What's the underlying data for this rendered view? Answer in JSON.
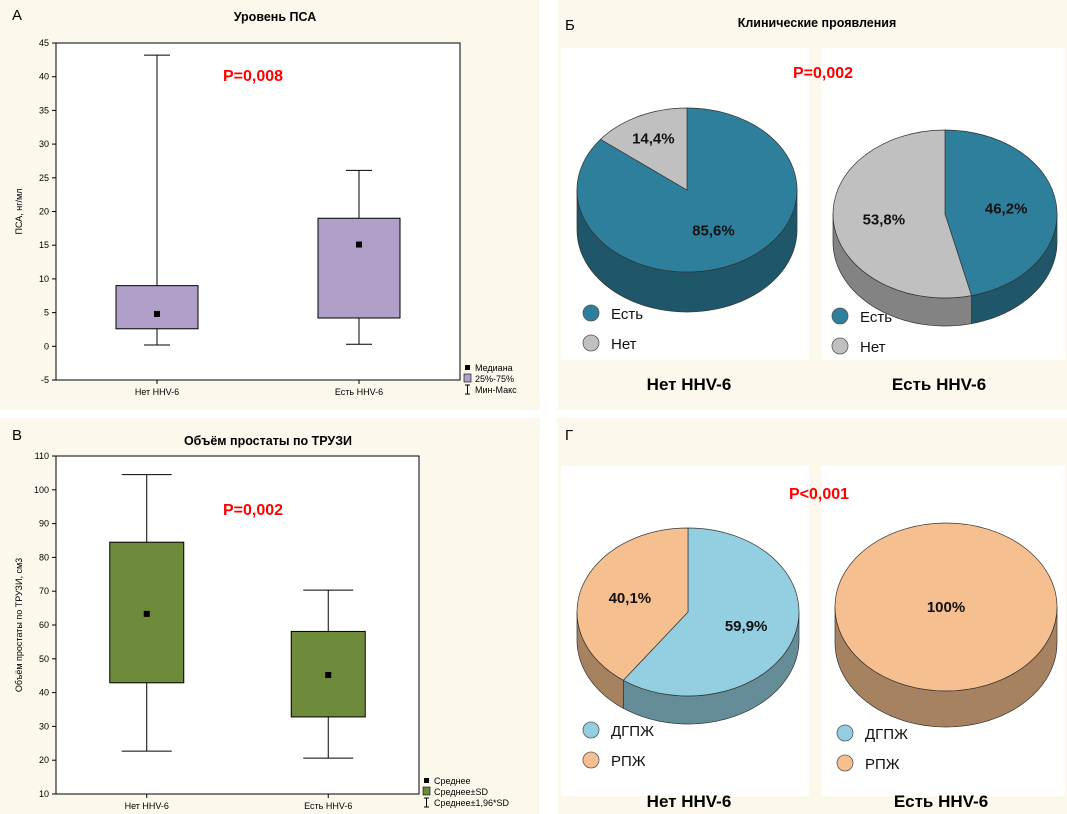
{
  "chart_data": [
    {
      "type": "box",
      "panel": "А",
      "title": "Уровень ПСА",
      "ylabel": "ПСА, нг/мл",
      "ylim": [
        -5,
        45
      ],
      "yticks": [
        -5,
        0,
        5,
        10,
        15,
        20,
        25,
        30,
        35,
        40,
        45
      ],
      "categories": [
        "Нет HHV-6",
        "Есть HHV-6"
      ],
      "annotation": "P=0,008",
      "legend": [
        "Медиана",
        "25%-75%",
        "Мин-Макс"
      ],
      "box_color": "#b09fc9",
      "boxes": [
        {
          "center": 4.8,
          "q1": 2.6,
          "q3": 9.0,
          "min": 0.2,
          "max": 43.2
        },
        {
          "center": 15.1,
          "q1": 4.2,
          "q3": 19.0,
          "min": 0.3,
          "max": 26.1
        }
      ]
    },
    {
      "type": "pie",
      "panel": "Б",
      "title": "Клинические проявления",
      "annotation": "P=0,002",
      "legend": [
        "Есть",
        "Нет"
      ],
      "colors": [
        "#2e7f9c",
        "#c0c0c0"
      ],
      "groups": [
        {
          "label": "Нет HHV-6",
          "slices": [
            {
              "name": "Есть",
              "value": 85.6,
              "label": "85,6%"
            },
            {
              "name": "Нет",
              "value": 14.4,
              "label": "14,4%"
            }
          ]
        },
        {
          "label": "Есть HHV-6",
          "slices": [
            {
              "name": "Есть",
              "value": 46.2,
              "label": "46,2%"
            },
            {
              "name": "Нет",
              "value": 53.8,
              "label": "53,8%"
            }
          ]
        }
      ]
    },
    {
      "type": "box",
      "panel": "В",
      "title": "Объём простаты по ТРУЗИ",
      "ylabel": "Объём простаты по ТРУЗИ, см3",
      "ylim": [
        10,
        110
      ],
      "yticks": [
        10,
        20,
        30,
        40,
        50,
        60,
        70,
        80,
        90,
        100,
        110
      ],
      "categories": [
        "Нет HHV-6",
        "Есть HHV-6"
      ],
      "annotation": "P=0,002",
      "legend": [
        "Среднее",
        "Среднее±SD",
        "Среднее±1,96*SD"
      ],
      "box_color": "#6d8b3a",
      "boxes": [
        {
          "center": 63.3,
          "q1": 42.9,
          "q3": 84.5,
          "min": 22.7,
          "max": 104.5
        },
        {
          "center": 45.2,
          "q1": 32.8,
          "q3": 58.1,
          "min": 20.6,
          "max": 70.3
        }
      ]
    },
    {
      "type": "pie",
      "panel": "Г",
      "title": "",
      "annotation": "P<0,001",
      "legend": [
        "ДГПЖ",
        "РПЖ"
      ],
      "colors": [
        "#93cfe0",
        "#f5bf8f"
      ],
      "groups": [
        {
          "label": "Нет HHV-6",
          "slices": [
            {
              "name": "ДГПЖ",
              "value": 59.9,
              "label": "59,9%"
            },
            {
              "name": "РПЖ",
              "value": 40.1,
              "label": "40,1%"
            }
          ]
        },
        {
          "label": "Есть HHV-6",
          "slices": [
            {
              "name": "ДГПЖ",
              "value": 0,
              "label": ""
            },
            {
              "name": "РПЖ",
              "value": 100,
              "label": "100%"
            }
          ]
        }
      ]
    }
  ]
}
